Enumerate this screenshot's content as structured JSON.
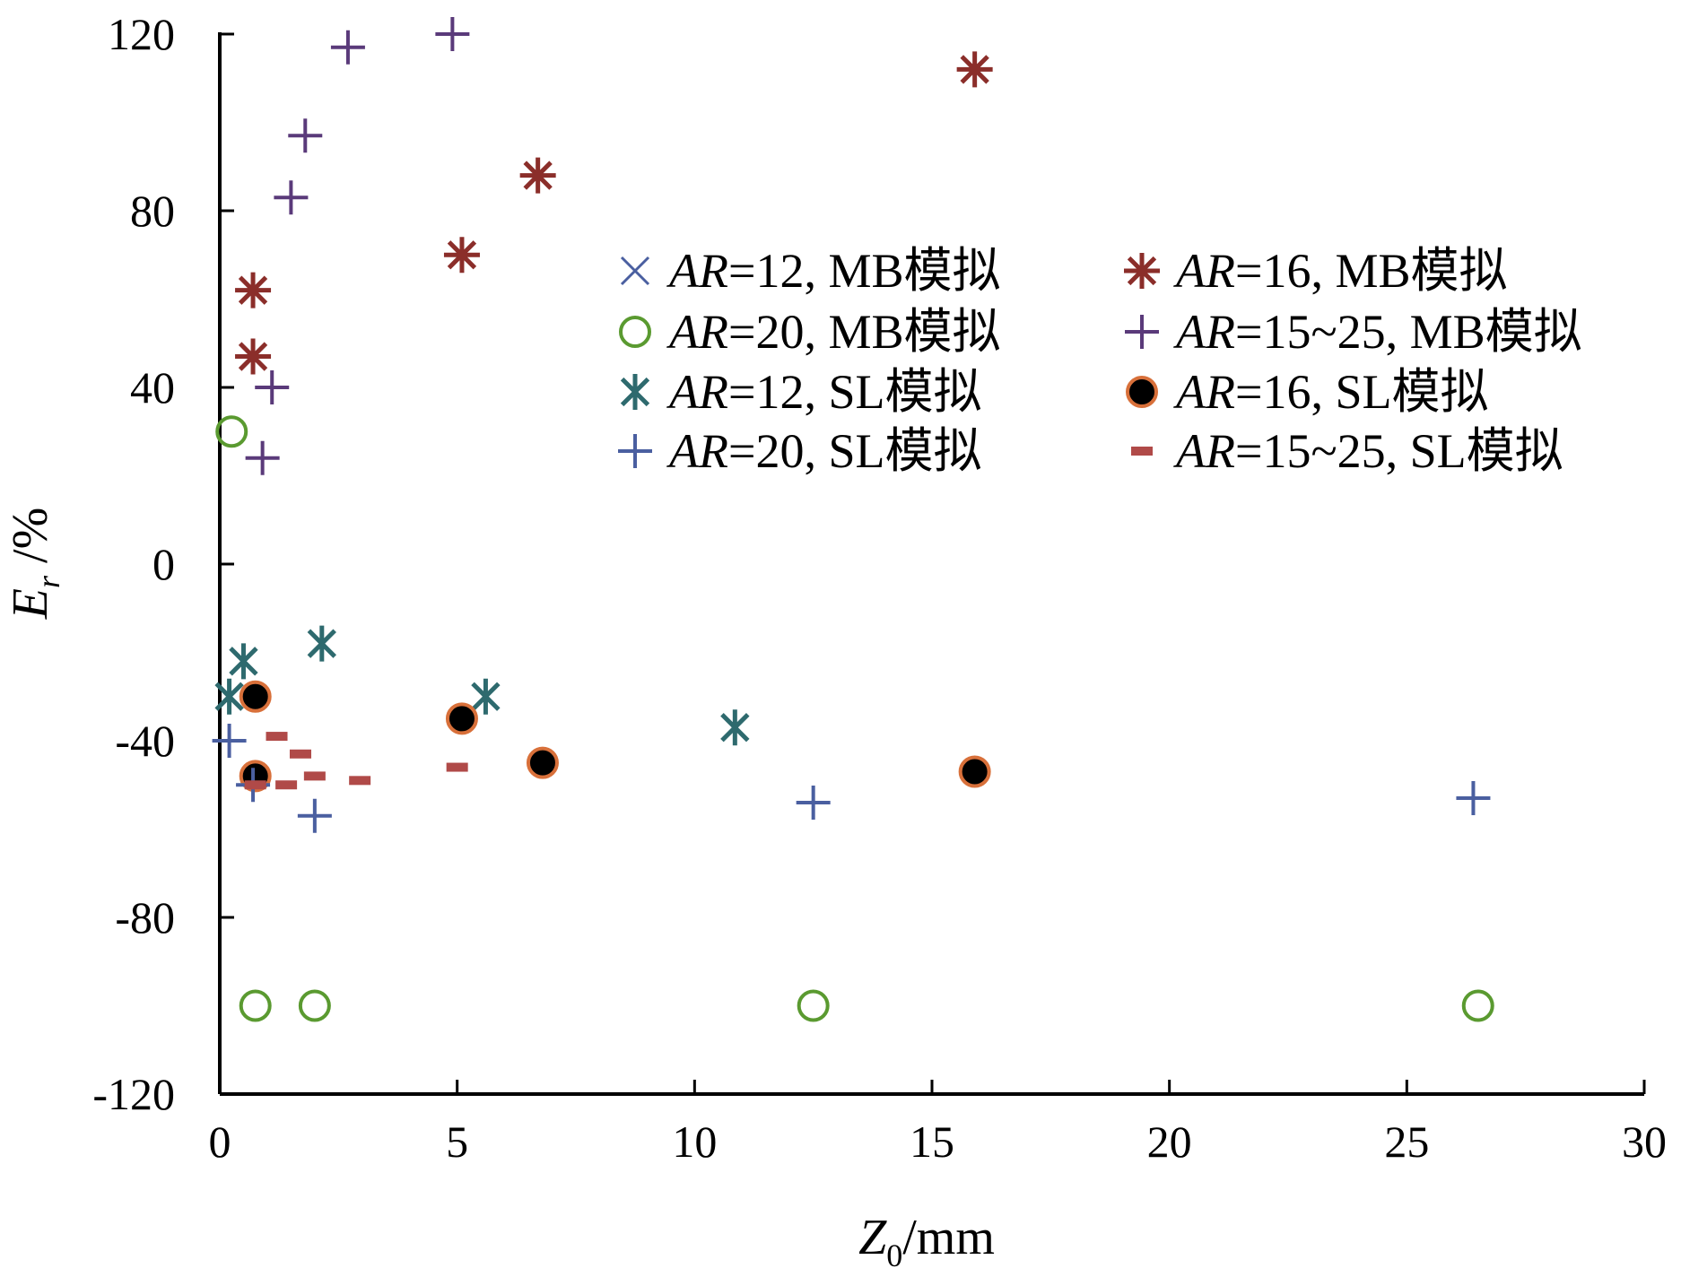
{
  "chart_data": {
    "type": "scatter",
    "title": "",
    "xlabel": {
      "main": "Z",
      "sub": "0",
      "unit": "/mm"
    },
    "ylabel": {
      "main": "E",
      "sub": "r",
      "unit": " /%"
    },
    "xlim": [
      0,
      30
    ],
    "ylim": [
      -120,
      120
    ],
    "xticks": [
      0,
      5,
      10,
      15,
      20,
      25,
      30
    ],
    "yticks": [
      120,
      80,
      40,
      0,
      -40,
      -80,
      -120
    ],
    "grid": false,
    "legend_position": "top-right",
    "series": [
      {
        "name": "AR=12, MB模拟",
        "label_italic": "AR",
        "label_rest": "=12, MB模拟",
        "marker": "x",
        "color": "#4a5fa0",
        "points": []
      },
      {
        "name": "AR=16, MB模拟",
        "label_italic": "AR",
        "label_rest": "=16, MB模拟",
        "marker": "asterisk",
        "color": "#8b2e2a",
        "points": [
          [
            0.7,
            62
          ],
          [
            0.7,
            47
          ],
          [
            5.1,
            70
          ],
          [
            6.7,
            88
          ],
          [
            15.9,
            112
          ]
        ]
      },
      {
        "name": "AR=20, MB模拟",
        "label_italic": "AR",
        "label_rest": "=20, MB模拟",
        "marker": "circle",
        "color": "#5a9a30",
        "points": [
          [
            0.25,
            30
          ],
          [
            0.75,
            -100
          ],
          [
            2.0,
            -100
          ],
          [
            12.5,
            -100
          ],
          [
            26.5,
            -100
          ]
        ]
      },
      {
        "name": "AR=15~25, MB模拟",
        "label_italic": "AR",
        "label_rest": "=15~25, MB模拟",
        "marker": "plus",
        "color": "#5a3a7a",
        "points": [
          [
            0.9,
            24
          ],
          [
            1.1,
            40
          ],
          [
            1.5,
            83
          ],
          [
            1.8,
            97
          ],
          [
            2.7,
            117
          ],
          [
            4.9,
            120
          ]
        ]
      },
      {
        "name": "AR=12, SL模拟",
        "label_italic": "AR",
        "label_rest": "=12, SL模拟",
        "marker": "star",
        "color": "#2e6a6e",
        "points": [
          [
            0.2,
            -30
          ],
          [
            0.5,
            -22
          ],
          [
            2.15,
            -18
          ],
          [
            5.6,
            -30
          ],
          [
            10.85,
            -37
          ]
        ]
      },
      {
        "name": "AR=16, SL模拟",
        "label_italic": "AR",
        "label_rest": "=16, SL模拟",
        "marker": "dot",
        "color": "#000000",
        "edge_color": "#d8703a",
        "points": [
          [
            0.75,
            -30
          ],
          [
            0.75,
            -48
          ],
          [
            5.1,
            -35
          ],
          [
            6.8,
            -45
          ],
          [
            15.9,
            -47
          ]
        ]
      },
      {
        "name": "AR=20, SL模拟",
        "label_italic": "AR",
        "label_rest": "=20, SL模拟",
        "marker": "plus",
        "color": "#4a5fa0",
        "points": [
          [
            0.2,
            -40
          ],
          [
            0.7,
            -50
          ],
          [
            2.0,
            -57
          ],
          [
            12.5,
            -54
          ],
          [
            26.4,
            -53
          ]
        ]
      },
      {
        "name": "AR=15~25, SL模拟",
        "label_italic": "AR",
        "label_rest": "=15~25, SL模拟",
        "marker": "dash",
        "color": "#b04a48",
        "points": [
          [
            1.2,
            -39
          ],
          [
            1.7,
            -43
          ],
          [
            0.75,
            -50
          ],
          [
            1.4,
            -50
          ],
          [
            2.0,
            -48
          ],
          [
            2.95,
            -49
          ],
          [
            5.0,
            -46
          ]
        ]
      }
    ]
  }
}
